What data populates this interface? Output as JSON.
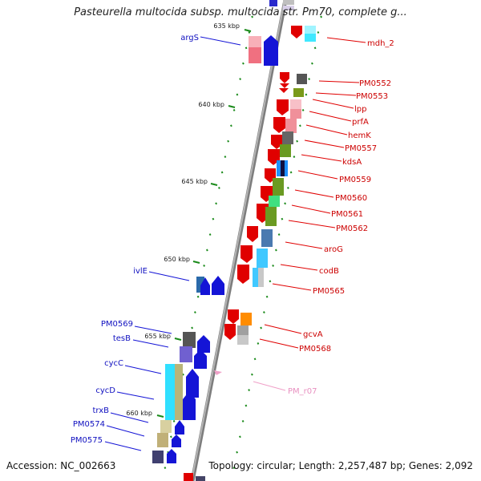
{
  "title": "Pasteurella multocida subsp. multocida str. Pm70, complete g...",
  "footer": {
    "accession": "Accession: NC_002663",
    "topology": "Topology: circular; Length: 2,257,487 bp; Genes: 2,092"
  },
  "kbp_ticks": [
    "635 kbp",
    "640 kbp",
    "645 kbp",
    "650 kbp",
    "655 kbp",
    "660 kbp"
  ],
  "genes_right": [
    "mdh_2",
    "PM0552",
    "PM0553",
    "lpp",
    "prfA",
    "hemK",
    "PM0557",
    "kdsA",
    "PM0559",
    "PM0560",
    "PM0561",
    "PM0562",
    "aroG",
    "codB",
    "PM0565",
    "gcvA",
    "PM0568"
  ],
  "rna_right": [
    "PM_r07"
  ],
  "genes_left": [
    "argS",
    "ivlE",
    "PM0569",
    "tesB",
    "cycC",
    "cycD",
    "trxB",
    "PM0574",
    "PM0575"
  ],
  "colors": {
    "forward_gene": "#1414d6",
    "reverse_gene": "#e00000",
    "rna": "#e8a0c8",
    "backbone": "#9a9a9a",
    "tick": "#1a8a1a"
  }
}
